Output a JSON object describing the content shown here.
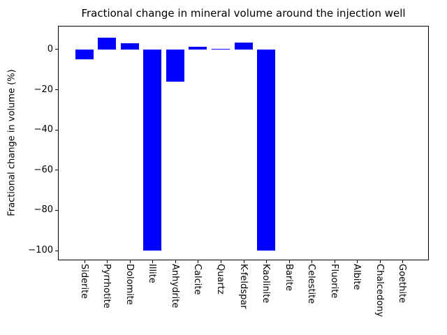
{
  "chart_data": {
    "type": "bar",
    "title": "Fractional change in mineral volume around the injection well",
    "xlabel": "",
    "ylabel": "Fractional change in volume (%)",
    "categories": [
      "Siderite",
      "Pyrrhotite",
      "Dolomite",
      "Illite",
      "Anhydrite",
      "Calcite",
      "Quartz",
      "K-feldspar",
      "Kaolinite",
      "Barite",
      "Celestite",
      "Fluorite",
      "Albite",
      "Chalcedony",
      "Goethite"
    ],
    "values": [
      -5,
      6,
      3,
      -100,
      -16,
      1.4,
      0.5,
      3.6,
      -100,
      0,
      0,
      0,
      0,
      0,
      0
    ],
    "bar_color": "#0000ff",
    "axis_color": "#000000",
    "background_color": "#ffffff",
    "ylim": [
      -104.7,
      11.6
    ],
    "yticks": [
      0,
      -20,
      -40,
      -60,
      -80,
      -100
    ],
    "ytick_labels": [
      "0",
      "−20",
      "−40",
      "−60",
      "−80",
      "−100"
    ],
    "grid": false,
    "legend": null
  }
}
